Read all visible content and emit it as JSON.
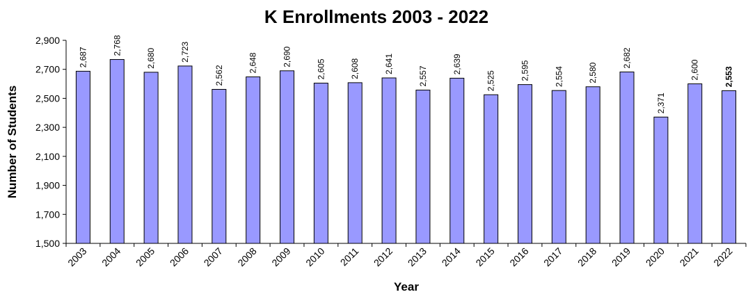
{
  "chart_data": {
    "type": "bar",
    "title": "K Enrollments 2003 - 2022",
    "xlabel": "Year",
    "ylabel": "Number of Students",
    "ylim": [
      1500,
      2900
    ],
    "yticks": [
      1500,
      1700,
      1900,
      2100,
      2300,
      2500,
      2700,
      2900
    ],
    "ytick_labels": [
      "1,500",
      "1,700",
      "1,900",
      "2,100",
      "2,300",
      "2,500",
      "2,700",
      "2,900"
    ],
    "grid": false,
    "bar_color": "#9999ff",
    "categories": [
      "2003",
      "2004",
      "2005",
      "2006",
      "2007",
      "2008",
      "2009",
      "2010",
      "2011",
      "2012",
      "2013",
      "2014",
      "2015",
      "2016",
      "2017",
      "2018",
      "2019",
      "2020",
      "2021",
      "2022"
    ],
    "values": [
      2687,
      2768,
      2680,
      2723,
      2562,
      2648,
      2690,
      2605,
      2608,
      2641,
      2557,
      2639,
      2525,
      2595,
      2554,
      2580,
      2682,
      2371,
      2600,
      2553
    ],
    "data_labels": [
      "2,687",
      "2,768",
      "2,680",
      "2,723",
      "2,562",
      "2,648",
      "2,690",
      "2,605",
      "2,608",
      "2,641",
      "2,557",
      "2,639",
      "2,525",
      "2,595",
      "2,554",
      "2,580",
      "2,682",
      "2,371",
      "2,600",
      "2,553"
    ],
    "bold_label_index": 19
  }
}
